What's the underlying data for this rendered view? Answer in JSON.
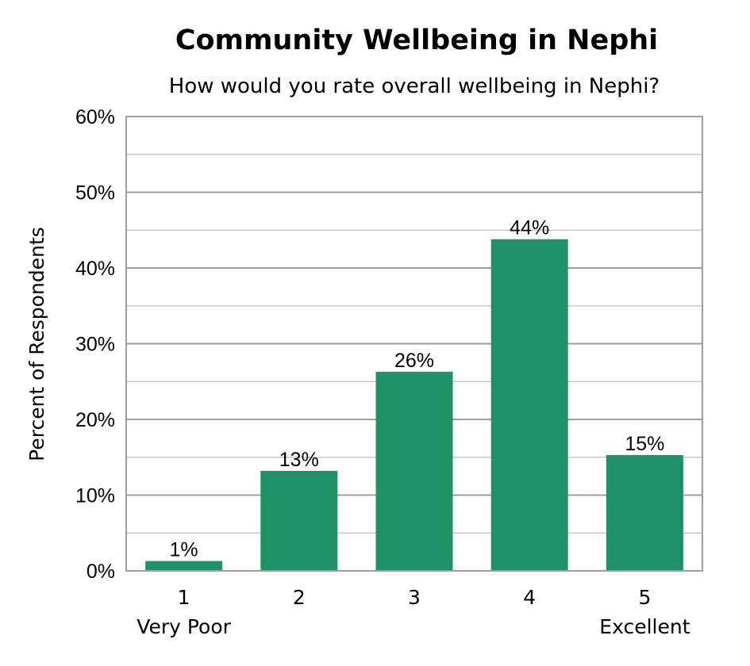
{
  "chart_data": {
    "type": "bar",
    "title": "Community Wellbeing in Nephi",
    "subtitle": "How would you rate overall wellbeing in Nephi?",
    "xlabel": "",
    "ylabel": "Percent of Respondents",
    "categories": [
      "1",
      "2",
      "3",
      "4",
      "5"
    ],
    "category_sublabels": [
      "Very Poor",
      "",
      "",
      "",
      "Excellent"
    ],
    "values": [
      1.3,
      13.2,
      26.3,
      43.8,
      15.3
    ],
    "data_labels": [
      "1%",
      "13%",
      "26%",
      "44%",
      "15%"
    ],
    "ylim": [
      0,
      60
    ],
    "yticks": [
      0,
      10,
      20,
      30,
      40,
      50,
      60
    ],
    "ytick_labels": [
      "0%",
      "10%",
      "20%",
      "30%",
      "40%",
      "50%",
      "60%"
    ],
    "grid": true,
    "legend": "none",
    "colors": {
      "bar": "#1f9167",
      "major_grid": "#9e9e9e",
      "minor_grid": "#c8c8c8",
      "frame": "#9e9e9e"
    }
  }
}
